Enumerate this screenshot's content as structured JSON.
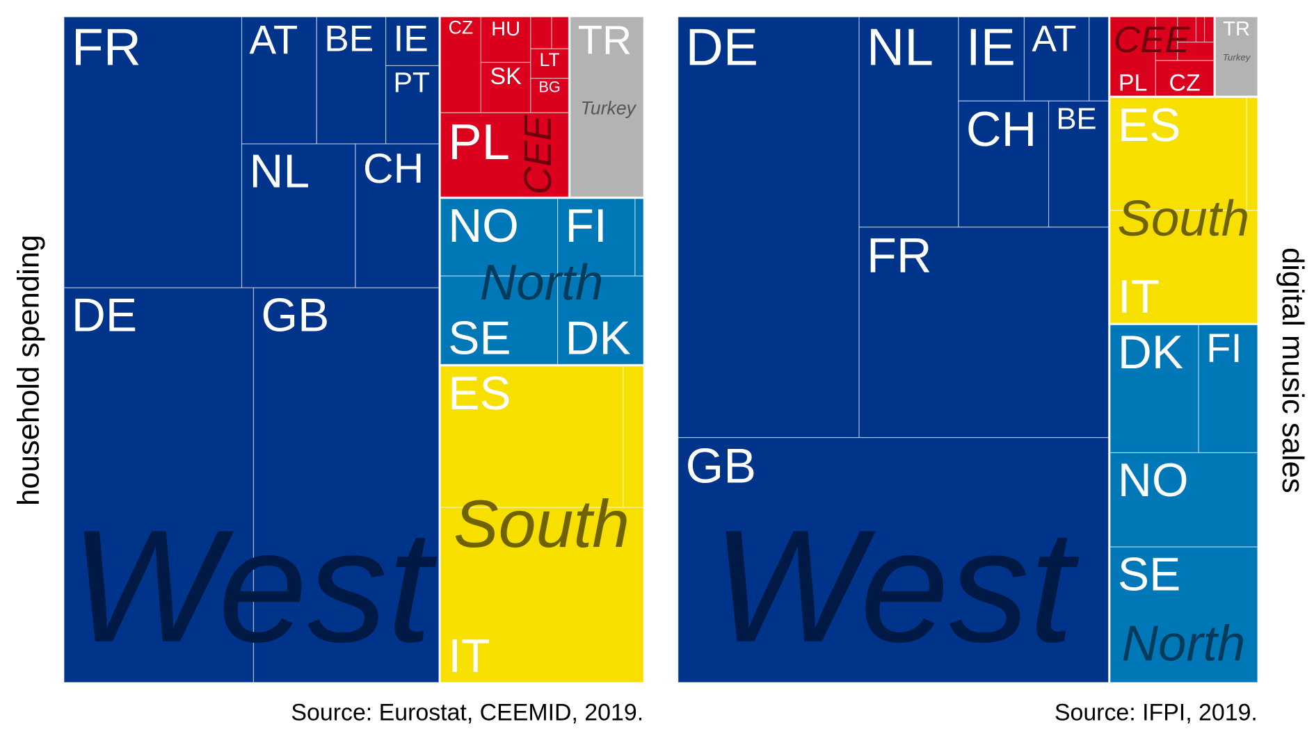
{
  "colors": {
    "West": "#00338a",
    "North": "#0077b6",
    "South": "#f7df00",
    "CEE": "#db001b",
    "Turkey": "#b3b3b3"
  },
  "group_text_colors": {
    "West": "#001a45",
    "North": "#003b5b",
    "South": "#6e6300",
    "CEE": "#6e000e",
    "Turkey": "#555555"
  },
  "chart_data": [
    {
      "type": "treemap",
      "ylabel": "household spending",
      "source": "Source: Eurostat, CEEMID, 2019.",
      "groups": [
        "West",
        "CEE",
        "Turkey",
        "North",
        "South"
      ],
      "cells": [
        {
          "label": "FR",
          "group": "West"
        },
        {
          "label": "AT",
          "group": "West"
        },
        {
          "label": "BE",
          "group": "West"
        },
        {
          "label": "IE",
          "group": "West"
        },
        {
          "label": "PT",
          "group": "West"
        },
        {
          "label": "NL",
          "group": "West"
        },
        {
          "label": "CH",
          "group": "West"
        },
        {
          "label": "DE",
          "group": "West"
        },
        {
          "label": "GB",
          "group": "West"
        },
        {
          "label": "CZ",
          "group": "CEE"
        },
        {
          "label": "HU",
          "group": "CEE"
        },
        {
          "label": "SK",
          "group": "CEE"
        },
        {
          "label": "",
          "group": "CEE"
        },
        {
          "label": "",
          "group": "CEE"
        },
        {
          "label": "LT",
          "group": "CEE"
        },
        {
          "label": "BG",
          "group": "CEE"
        },
        {
          "label": "PL",
          "group": "CEE"
        },
        {
          "label": "TR",
          "group": "Turkey"
        },
        {
          "label": "NO",
          "group": "North"
        },
        {
          "label": "FI",
          "group": "North"
        },
        {
          "label": "",
          "group": "North"
        },
        {
          "label": "SE",
          "group": "North"
        },
        {
          "label": "DK",
          "group": "North"
        },
        {
          "label": "ES",
          "group": "South"
        },
        {
          "label": "",
          "group": "South"
        },
        {
          "label": "IT",
          "group": "South"
        }
      ]
    },
    {
      "type": "treemap",
      "ylabel": "digital music sales",
      "source": "Source: IFPI, 2019.",
      "groups": [
        "West",
        "CEE",
        "Turkey",
        "South",
        "North"
      ],
      "cells": [
        {
          "label": "DE",
          "group": "West"
        },
        {
          "label": "NL",
          "group": "West"
        },
        {
          "label": "IE",
          "group": "West"
        },
        {
          "label": "AT",
          "group": "West"
        },
        {
          "label": "",
          "group": "West"
        },
        {
          "label": "CH",
          "group": "West"
        },
        {
          "label": "BE",
          "group": "West"
        },
        {
          "label": "FR",
          "group": "West"
        },
        {
          "label": "GB",
          "group": "West"
        },
        {
          "label": "PL",
          "group": "CEE"
        },
        {
          "label": "",
          "group": "CEE"
        },
        {
          "label": "",
          "group": "CEE"
        },
        {
          "label": "",
          "group": "CEE"
        },
        {
          "label": "",
          "group": "CEE"
        },
        {
          "label": "",
          "group": "CEE"
        },
        {
          "label": "CZ",
          "group": "CEE"
        },
        {
          "label": "TR",
          "group": "Turkey"
        },
        {
          "label": "ES",
          "group": "South"
        },
        {
          "label": "",
          "group": "South"
        },
        {
          "label": "IT",
          "group": "South"
        },
        {
          "label": "DK",
          "group": "North"
        },
        {
          "label": "FI",
          "group": "North"
        },
        {
          "label": "NO",
          "group": "North"
        },
        {
          "label": "SE",
          "group": "North"
        }
      ]
    }
  ]
}
